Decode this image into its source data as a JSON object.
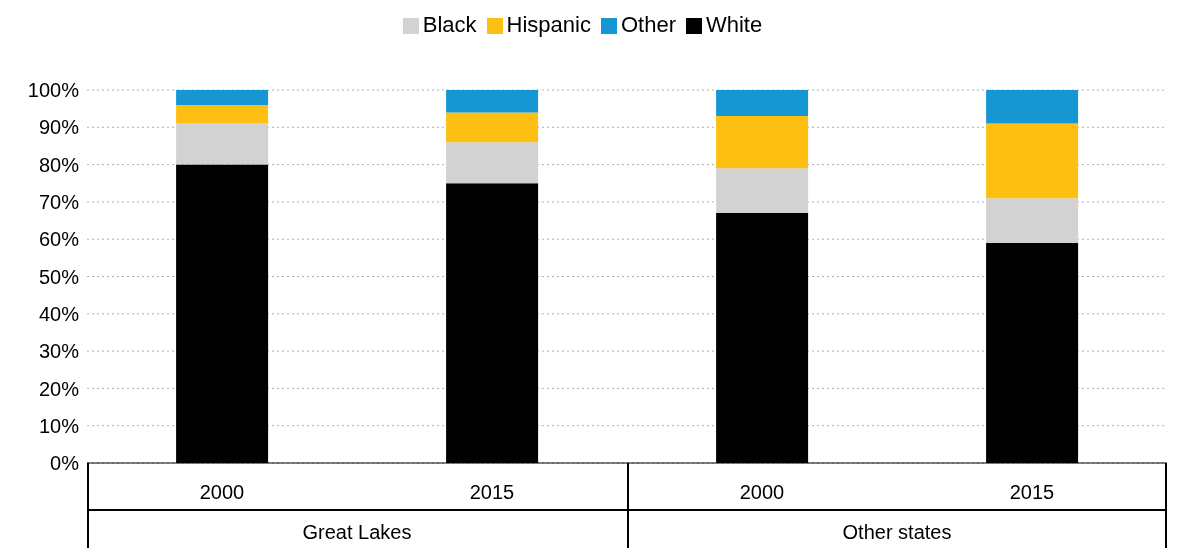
{
  "chart_data": {
    "type": "bar",
    "stacked": true,
    "categories": [
      "2000",
      "2015",
      "2000",
      "2015"
    ],
    "series": [
      {
        "name": "White",
        "color": "#000000",
        "values": [
          80,
          75,
          67,
          59
        ]
      },
      {
        "name": "Black",
        "color": "#d2d2d2",
        "values": [
          11,
          11,
          12,
          12
        ]
      },
      {
        "name": "Hispanic",
        "color": "#fdbf11",
        "values": [
          5,
          8,
          14,
          20
        ]
      },
      {
        "name": "Other",
        "color": "#1696d2",
        "values": [
          4,
          6,
          7,
          9
        ]
      }
    ],
    "ylim": [
      0,
      100
    ],
    "yticks": [
      {
        "value": 0,
        "label": "0%"
      },
      {
        "value": 10,
        "label": "10%"
      },
      {
        "value": 20,
        "label": "20%"
      },
      {
        "value": 30,
        "label": "30%"
      },
      {
        "value": 40,
        "label": "40%"
      },
      {
        "value": 50,
        "label": "50%"
      },
      {
        "value": 60,
        "label": "60%"
      },
      {
        "value": 70,
        "label": "70%"
      },
      {
        "value": 80,
        "label": "80%"
      },
      {
        "value": 90,
        "label": "90%"
      },
      {
        "value": 100,
        "label": "100%"
      }
    ],
    "grid": "y",
    "legend": "top",
    "annotations": [
      "Great Lakes",
      "Other states"
    ]
  }
}
